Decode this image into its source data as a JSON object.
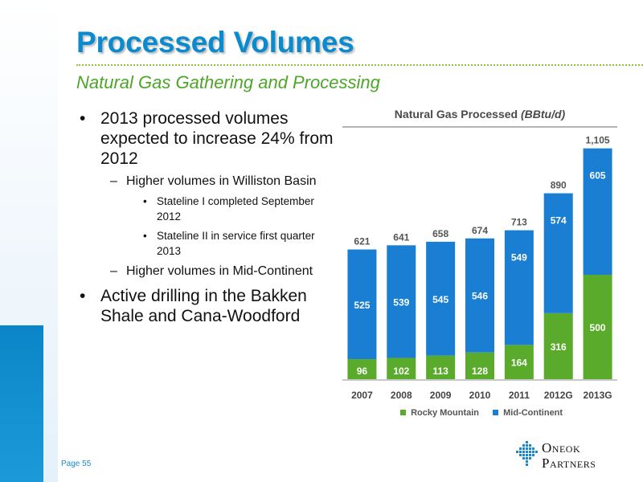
{
  "slide": {
    "title": "Processed Volumes",
    "subtitle": "Natural Gas Gathering and Processing",
    "page": "Page 55"
  },
  "bullets": [
    {
      "level": 1,
      "text": "2013 processed volumes expected to increase 24% from 2012"
    },
    {
      "level": 2,
      "text": "Higher volumes in Williston Basin"
    },
    {
      "level": 3,
      "text": "Stateline I completed September 2012"
    },
    {
      "level": 3,
      "text": "Stateline II in service first quarter 2013"
    },
    {
      "level": 2,
      "text": "Higher volumes in Mid-Continent"
    },
    {
      "level": 1,
      "text": "Active drilling in the Bakken Shale and Cana-Woodford"
    }
  ],
  "logo": {
    "line1_big": "O",
    "line1_rest": "NEOK",
    "line2_big": "P",
    "line2_rest": "ARTNERS"
  },
  "chart_data": {
    "type": "bar",
    "stacked": true,
    "title": "Natural Gas Processed",
    "title_unit": "(BBtu/d)",
    "categories": [
      "2007",
      "2008",
      "2009",
      "2010",
      "2011",
      "2012G",
      "2013G"
    ],
    "series": [
      {
        "name": "Rocky Mountain",
        "color": "#5aab2c",
        "values": [
          96,
          102,
          113,
          128,
          164,
          316,
          500
        ]
      },
      {
        "name": "Mid-Continent",
        "color": "#1a7fd2",
        "values": [
          525,
          539,
          545,
          546,
          549,
          574,
          605
        ]
      }
    ],
    "totals": [
      "621",
      "641",
      "658",
      "674",
      "713",
      "890",
      "1,105"
    ],
    "ylim": [
      0,
      1200
    ],
    "grid": false,
    "legend_position": "bottom"
  }
}
